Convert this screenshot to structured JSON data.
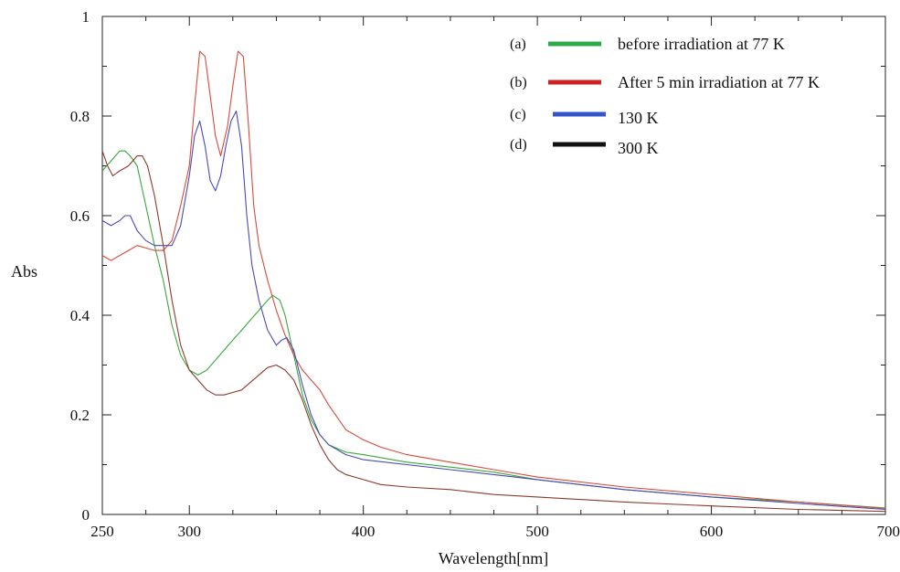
{
  "chart_data": {
    "type": "line",
    "xlabel": "Wavelength[nm]",
    "ylabel": "Abs",
    "xlim": [
      250,
      700
    ],
    "ylim": [
      0,
      1
    ],
    "x_ticks": [
      250,
      300,
      400,
      500,
      600,
      700
    ],
    "x_minor_step": 25,
    "y_ticks": [
      0,
      0.2,
      0.4,
      0.6,
      0.8,
      1
    ],
    "y_tick_labels": [
      "0",
      "0.2",
      "0.4",
      "0.6",
      "0.8",
      "1"
    ],
    "y_minor_step": 0.1,
    "legend_position": "top-right",
    "series": [
      {
        "tag": "(a)",
        "name": "before irradiation at 77 K",
        "color": "#3aa83a",
        "x": [
          250,
          255,
          260,
          263,
          266,
          270,
          275,
          280,
          285,
          290,
          295,
          300,
          305,
          310,
          315,
          320,
          325,
          330,
          335,
          340,
          345,
          348,
          352,
          355,
          360,
          365,
          370,
          375,
          380,
          390,
          400,
          425,
          450,
          475,
          500,
          550,
          600,
          650,
          700
        ],
        "y": [
          0.69,
          0.71,
          0.73,
          0.73,
          0.72,
          0.7,
          0.62,
          0.54,
          0.47,
          0.38,
          0.32,
          0.29,
          0.28,
          0.29,
          0.31,
          0.33,
          0.35,
          0.37,
          0.39,
          0.41,
          0.43,
          0.44,
          0.43,
          0.4,
          0.32,
          0.24,
          0.19,
          0.16,
          0.14,
          0.125,
          0.12,
          0.105,
          0.095,
          0.085,
          0.07,
          0.05,
          0.035,
          0.025,
          0.013
        ]
      },
      {
        "tag": "(b)",
        "name": "After 5 min irradiation at 77 K",
        "color": "#d84a3a",
        "x": [
          250,
          255,
          260,
          265,
          270,
          275,
          280,
          285,
          290,
          295,
          300,
          303,
          306,
          309,
          312,
          315,
          318,
          322,
          325,
          328,
          331,
          334,
          337,
          340,
          345,
          350,
          355,
          360,
          365,
          370,
          375,
          380,
          390,
          400,
          410,
          425,
          450,
          475,
          500,
          550,
          600,
          650,
          700
        ],
        "y": [
          0.52,
          0.51,
          0.52,
          0.53,
          0.54,
          0.535,
          0.53,
          0.53,
          0.55,
          0.62,
          0.7,
          0.82,
          0.93,
          0.92,
          0.84,
          0.76,
          0.72,
          0.78,
          0.86,
          0.93,
          0.92,
          0.78,
          0.62,
          0.54,
          0.47,
          0.41,
          0.36,
          0.32,
          0.29,
          0.27,
          0.25,
          0.22,
          0.17,
          0.15,
          0.135,
          0.12,
          0.105,
          0.09,
          0.075,
          0.055,
          0.04,
          0.025,
          0.012
        ]
      },
      {
        "tag": "(c)",
        "name": "130 K",
        "color": "#4a4ab8",
        "x": [
          250,
          255,
          260,
          263,
          266,
          270,
          275,
          280,
          285,
          290,
          295,
          300,
          303,
          306,
          309,
          312,
          315,
          318,
          321,
          324,
          327,
          330,
          333,
          336,
          340,
          345,
          350,
          353,
          356,
          360,
          365,
          370,
          375,
          380,
          390,
          400,
          425,
          450,
          475,
          500,
          550,
          600,
          650,
          700
        ],
        "y": [
          0.59,
          0.58,
          0.59,
          0.6,
          0.6,
          0.57,
          0.55,
          0.54,
          0.54,
          0.54,
          0.58,
          0.68,
          0.76,
          0.79,
          0.74,
          0.67,
          0.65,
          0.68,
          0.74,
          0.79,
          0.81,
          0.74,
          0.6,
          0.5,
          0.43,
          0.37,
          0.34,
          0.35,
          0.355,
          0.33,
          0.26,
          0.2,
          0.16,
          0.14,
          0.12,
          0.11,
          0.1,
          0.09,
          0.08,
          0.07,
          0.05,
          0.035,
          0.022,
          0.01
        ]
      },
      {
        "tag": "(d)",
        "name": "300 K",
        "color": "#8c3a2c",
        "x": [
          250,
          253,
          256,
          260,
          265,
          270,
          273,
          276,
          280,
          285,
          290,
          295,
          300,
          305,
          310,
          315,
          320,
          325,
          330,
          335,
          340,
          345,
          350,
          355,
          360,
          365,
          370,
          375,
          380,
          385,
          390,
          400,
          410,
          425,
          450,
          475,
          500,
          550,
          600,
          650,
          700
        ],
        "y": [
          0.73,
          0.7,
          0.68,
          0.69,
          0.7,
          0.72,
          0.72,
          0.7,
          0.64,
          0.54,
          0.43,
          0.34,
          0.29,
          0.27,
          0.25,
          0.24,
          0.24,
          0.245,
          0.25,
          0.265,
          0.28,
          0.295,
          0.3,
          0.29,
          0.27,
          0.23,
          0.18,
          0.14,
          0.11,
          0.09,
          0.08,
          0.07,
          0.06,
          0.055,
          0.05,
          0.04,
          0.035,
          0.025,
          0.017,
          0.01,
          0.006
        ]
      }
    ],
    "legend_swatch_colors": [
      "#2ea84a",
      "#cc2222",
      "#3355cc",
      "#111111"
    ]
  }
}
